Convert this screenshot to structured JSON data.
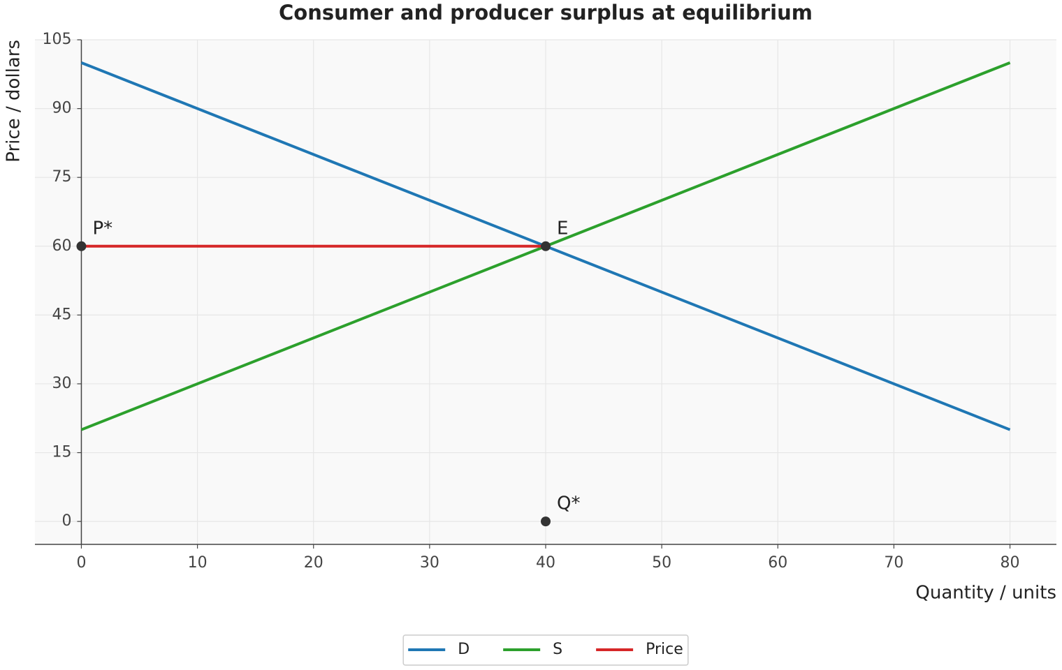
{
  "chart_data": {
    "type": "line",
    "title": "Consumer and producer surplus at equilibrium",
    "x_label": "Quantity / units",
    "y_label": "Price / dollars",
    "series": [
      {
        "name": "D",
        "color": "#1f77b4",
        "x": [
          0,
          80
        ],
        "values": [
          100,
          20
        ]
      },
      {
        "name": "S",
        "color": "#2ca02c",
        "x": [
          0,
          80
        ],
        "values": [
          20,
          100
        ]
      },
      {
        "name": "Price",
        "color": "#d62728",
        "x": [
          0,
          40
        ],
        "values": [
          60,
          60
        ]
      }
    ],
    "points": [
      {
        "label": "P*",
        "x": 0,
        "y": 60
      },
      {
        "label": "E",
        "x": 40,
        "y": 60
      },
      {
        "label": "Q*",
        "x": 40,
        "y": 0
      }
    ],
    "point_color": "#333333",
    "xlim": [
      -4,
      84
    ],
    "ylim": [
      -5,
      105
    ],
    "xticks": [
      0,
      10,
      20,
      30,
      40,
      50,
      60,
      70,
      80
    ],
    "yticks": [
      0,
      15,
      30,
      45,
      60,
      75,
      90,
      105
    ],
    "grid": true,
    "legend": "lower center outside"
  }
}
